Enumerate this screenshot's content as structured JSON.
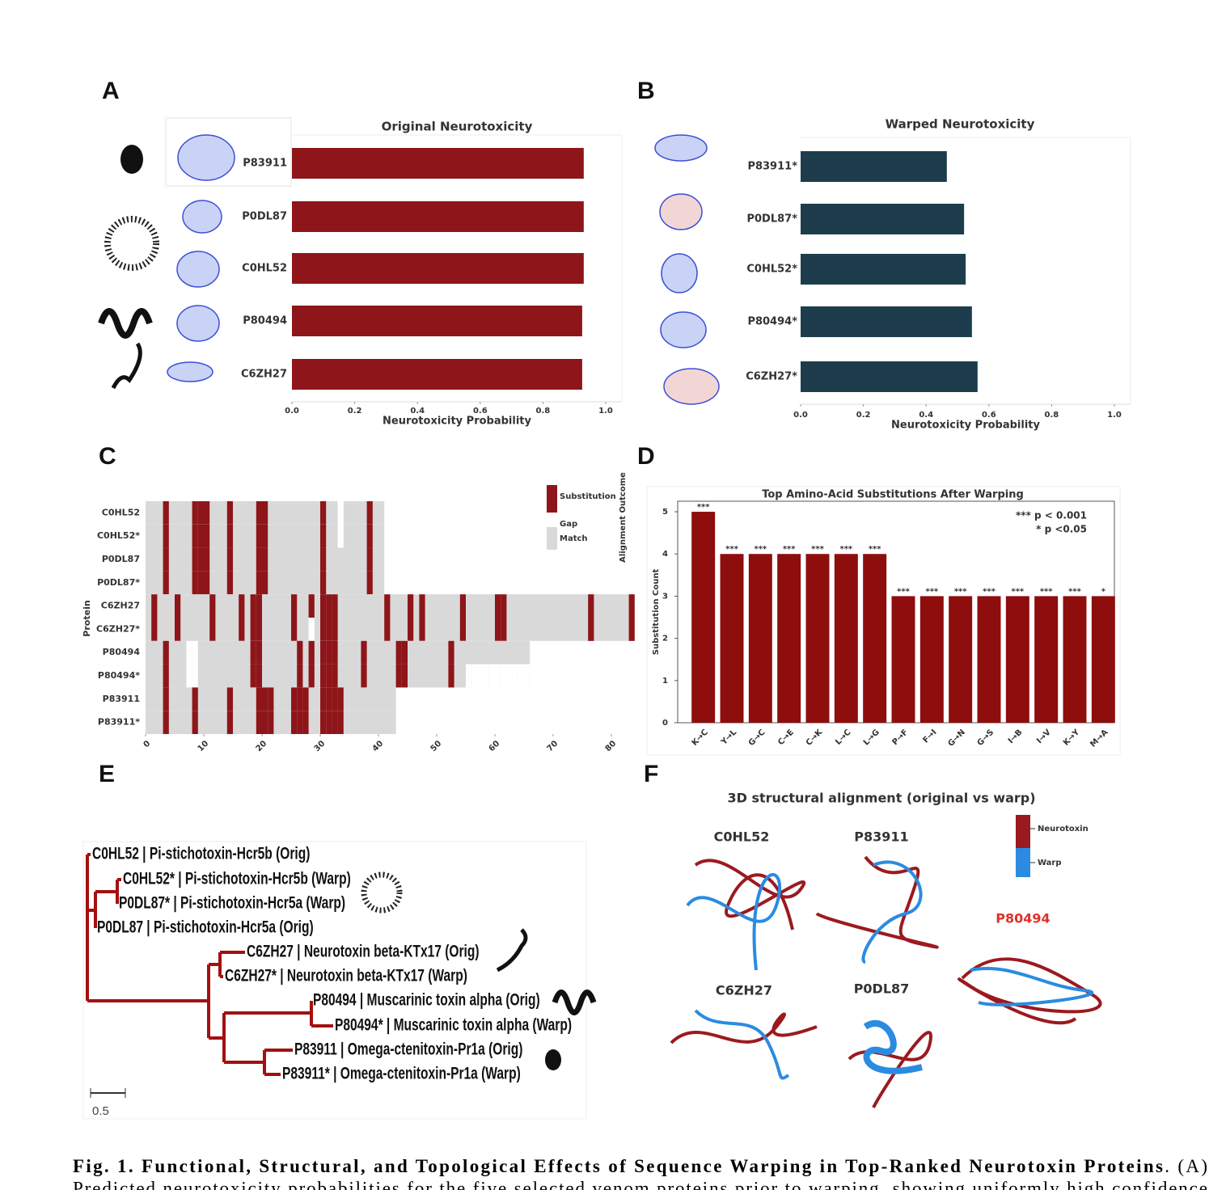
{
  "chart_data": [
    {
      "type": "hbar",
      "label": "A",
      "title": "Original Neurotoxicity",
      "categories": [
        "P83911",
        "P0DL87",
        "C0HL52",
        "P80494",
        "C6ZH27"
      ],
      "values": [
        0.93,
        0.93,
        0.93,
        0.925,
        0.925
      ],
      "color": "#8e1519",
      "xlim": [
        0,
        1
      ],
      "xticks": [
        {
          "value": 0,
          "label": "0.0"
        },
        0.2,
        0.4,
        0.6,
        0.8,
        {
          "value": 1,
          "label": "1.0"
        }
      ],
      "xlabel": "Neurotoxicity Probability"
    },
    {
      "type": "hbar",
      "label": "B",
      "title": "Warped Neurotoxicity",
      "categories": [
        "P83911*",
        "P0DL87*",
        "C0HL52*",
        "P80494*",
        "C6ZH27*"
      ],
      "values": [
        0.466,
        0.521,
        0.526,
        0.546,
        0.564
      ],
      "color": "#1d3d4d",
      "xlim": [
        0,
        1
      ],
      "xticks": [
        {
          "value": 0,
          "label": "0.0"
        },
        0.2,
        0.4,
        0.6,
        0.8,
        {
          "value": 1,
          "label": "1.0"
        }
      ],
      "xlabel": "Neurotoxicity Probability"
    },
    {
      "type": "heatmap",
      "label": "C",
      "ylabel": "Protein",
      "legend_title": "Alignment Outcome",
      "legend": [
        {
          "name": "Substitution",
          "color": "#8e1519"
        },
        {
          "name": "Gap",
          "color": "#ffffff"
        },
        {
          "name": "Match",
          "color": "#d9d9d9"
        }
      ],
      "rows": [
        {
          "name": "C0HL52",
          "length": 41,
          "substitutions": [
            3,
            8,
            9,
            10,
            14,
            19,
            20,
            30,
            38
          ],
          "gaps": [
            33
          ]
        },
        {
          "name": "C0HL52*",
          "length": 41,
          "substitutions": [
            3,
            8,
            9,
            10,
            14,
            19,
            20,
            30,
            38
          ],
          "gaps": [
            33
          ]
        },
        {
          "name": "P0DL87",
          "length": 41,
          "substitutions": [
            3,
            8,
            9,
            10,
            14,
            19,
            20,
            30,
            38
          ],
          "gaps": []
        },
        {
          "name": "P0DL87*",
          "length": 41,
          "substitutions": [
            3,
            8,
            9,
            10,
            14,
            19,
            20,
            30,
            38
          ],
          "gaps": []
        },
        {
          "name": "C6ZH27",
          "length": 84,
          "substitutions": [
            1,
            5,
            11,
            16,
            18,
            19,
            25,
            28,
            30,
            31,
            32,
            41,
            45,
            47,
            54,
            60,
            61,
            76,
            83
          ],
          "gaps": []
        },
        {
          "name": "C6ZH27*",
          "length": 84,
          "substitutions": [
            1,
            5,
            11,
            16,
            18,
            19,
            25,
            30,
            31,
            32,
            41,
            45,
            47,
            54,
            60,
            61,
            76,
            83
          ],
          "gaps": [
            28
          ]
        },
        {
          "name": "P80494",
          "length": 66,
          "substitutions": [
            3,
            18,
            19,
            26,
            28,
            30,
            31,
            32,
            37,
            43,
            44,
            52
          ],
          "gaps": [
            7,
            8
          ]
        },
        {
          "name": "P80494*",
          "length": 66,
          "substitutions": [
            3,
            18,
            19,
            26,
            28,
            30,
            31,
            32,
            37,
            43,
            44,
            52
          ],
          "gaps": [
            7,
            8,
            55,
            56,
            57,
            58,
            59,
            60,
            61,
            62,
            63,
            64,
            65
          ]
        },
        {
          "name": "P83911",
          "length": 43,
          "substitutions": [
            3,
            8,
            14,
            19,
            20,
            21,
            25,
            26,
            27,
            30,
            31,
            32,
            33
          ],
          "gaps": []
        },
        {
          "name": "P83911*",
          "length": 43,
          "substitutions": [
            3,
            8,
            14,
            19,
            20,
            21,
            25,
            26,
            27,
            30,
            31,
            32,
            33
          ],
          "gaps": []
        }
      ],
      "xlim": [
        0,
        85
      ],
      "xticks": [
        0,
        10,
        20,
        30,
        40,
        50,
        60,
        70,
        80
      ]
    },
    {
      "type": "bar",
      "label": "D",
      "title": "Top Amino-Acid Substitutions After Warping",
      "categories": [
        "K→C",
        "Y→L",
        "G→C",
        "C→E",
        "C→K",
        "L→C",
        "L→G",
        "P→F",
        "F→I",
        "G→N",
        "G→S",
        "I→B",
        "I→V",
        "K→Y",
        "M→A"
      ],
      "values": [
        5,
        4,
        4,
        4,
        4,
        4,
        4,
        3,
        3,
        3,
        3,
        3,
        3,
        3,
        3
      ],
      "significance": [
        "***",
        "***",
        "***",
        "***",
        "***",
        "***",
        "***",
        "***",
        "***",
        "***",
        "***",
        "***",
        "***",
        "***",
        "*"
      ],
      "notes": [
        "*** p < 0.001",
        "* p <0.05"
      ],
      "color": "#8e0d0d",
      "ylabel": "Substitution Count",
      "ylim": [
        0,
        5.25
      ],
      "yticks": [
        0,
        1,
        2,
        3,
        4,
        5
      ]
    }
  ],
  "tree": {
    "label": "E",
    "leaves": [
      "C0HL52 | Pi-stichotoxin-Hcr5b (Orig)",
      "C0HL52* | Pi-stichotoxin-Hcr5b (Warp)",
      "P0DL87* | Pi-stichotoxin-Hcr5a (Warp)",
      "P0DL87 | Pi-stichotoxin-Hcr5a (Orig)",
      "C6ZH27 | Neurotoxin beta-KTx17 (Orig)",
      "C6ZH27* | Neurotoxin beta-KTx17 (Warp)",
      "P80494 | Muscarinic toxin alpha (Orig)",
      "P80494* | Muscarinic toxin alpha (Warp)",
      "P83911 | Omega-ctenitoxin-Pr1a (Orig)",
      "P83911* | Omega-ctenitoxin-Pr1a (Warp)"
    ],
    "scale": 0.5
  },
  "structures": {
    "label": "F",
    "title": "3D structural alignment (original vs warp)",
    "proteins": [
      "C0HL52",
      "P83911",
      "P80494",
      "C6ZH27",
      "P0DL87"
    ],
    "legend": [
      {
        "name": "Neurotoxin",
        "color": "#9b1a1f"
      },
      {
        "name": "Warp",
        "color": "#2b8be0"
      }
    ]
  },
  "caption": {
    "title": "Fig. 1. Functional, Structural, and Topological Effects of Sequence Warping in Top-Ranked Neurotoxin Proteins",
    "ref": ". (A)",
    "continued": "Predicted neurotoxicity probabilities for the five selected venom proteins prior to warping, showing uniformly high confidence"
  }
}
